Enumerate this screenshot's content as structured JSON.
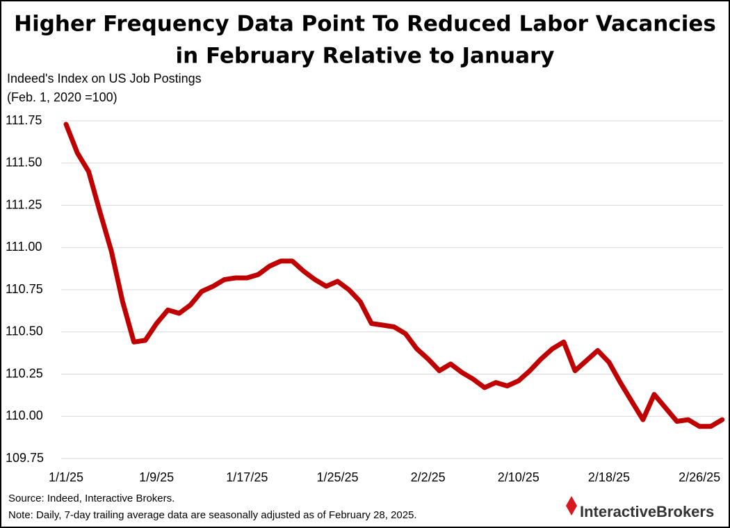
{
  "chart_data": {
    "type": "line",
    "title": [
      "Higher Frequency Data Point To Reduced Labor Vacancies",
      "in February Relative to January"
    ],
    "y_label": [
      "Indeed's Index on US Job Postings",
      "(Feb. 1, 2020 =100)"
    ],
    "categories": [
      "1/1/25",
      null,
      null,
      null,
      null,
      null,
      null,
      null,
      "1/9/25",
      null,
      null,
      null,
      null,
      null,
      null,
      null,
      "1/17/25",
      null,
      null,
      null,
      null,
      null,
      null,
      null,
      "1/25/25",
      null,
      null,
      null,
      null,
      null,
      null,
      null,
      "2/2/25",
      null,
      null,
      null,
      null,
      null,
      null,
      null,
      "2/10/25",
      null,
      null,
      null,
      null,
      null,
      null,
      null,
      "2/18/25",
      null,
      null,
      null,
      null,
      null,
      null,
      null,
      "2/26/25",
      null,
      null
    ],
    "values": [
      111.73,
      111.56,
      111.45,
      111.21,
      110.98,
      110.68,
      110.44,
      110.45,
      110.55,
      110.63,
      110.61,
      110.66,
      110.74,
      110.77,
      110.81,
      110.82,
      110.82,
      110.84,
      110.89,
      110.92,
      110.92,
      110.86,
      110.81,
      110.77,
      110.8,
      110.75,
      110.68,
      110.55,
      110.54,
      110.53,
      110.49,
      110.4,
      110.34,
      110.27,
      110.31,
      110.26,
      110.22,
      110.17,
      110.2,
      110.18,
      110.21,
      110.27,
      110.34,
      110.4,
      110.44,
      110.27,
      110.33,
      110.39,
      110.32,
      110.2,
      110.09,
      109.98,
      110.13,
      110.05,
      109.97,
      109.98,
      109.94,
      109.94,
      109.98
    ],
    "color": "#c00000",
    "ylim": [
      109.75,
      111.75
    ],
    "yticks": [
      {
        "value": 109.75,
        "label": "109.75"
      },
      {
        "value": 110,
        "label": "110.00"
      },
      {
        "value": 110.25,
        "label": "110.25"
      },
      {
        "value": 110.5,
        "label": "110.50"
      },
      {
        "value": 110.75,
        "label": "110.75"
      },
      {
        "value": 111,
        "label": "111.00"
      },
      {
        "value": 111.25,
        "label": "111.25"
      },
      {
        "value": 111.5,
        "label": "111.50"
      },
      {
        "value": 111.75,
        "label": "111.75"
      }
    ],
    "grid": true,
    "source": "Source: Indeed, Interactive Brokers.",
    "note": "Note: Daily, 7-day trailing average data are seasonally adjusted as of February 28, 2025.",
    "logo": "InteractiveBrokers"
  }
}
